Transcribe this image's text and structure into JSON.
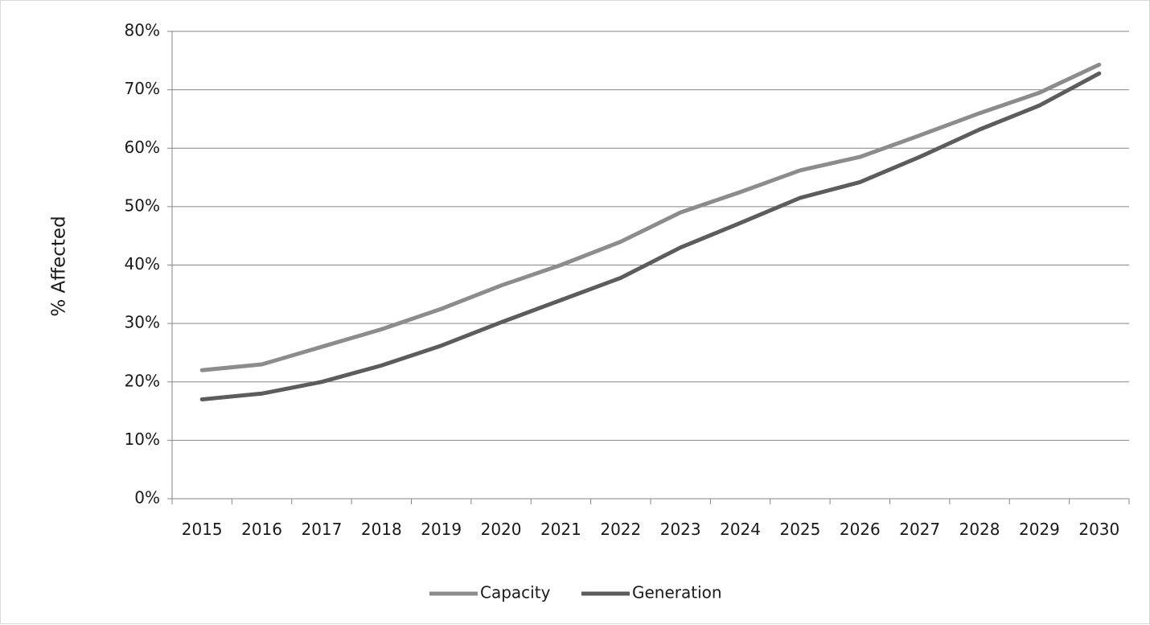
{
  "chart_data": {
    "type": "line",
    "title": "",
    "xlabel": "",
    "ylabel": "% Affected",
    "categories": [
      "2015",
      "2016",
      "2017",
      "2018",
      "2019",
      "2020",
      "2021",
      "2022",
      "2023",
      "2024",
      "2025",
      "2026",
      "2027",
      "2028",
      "2029",
      "2030"
    ],
    "ylim": [
      0,
      0.8
    ],
    "yticks": [
      0,
      0.1,
      0.2,
      0.3,
      0.4,
      0.5,
      0.6,
      0.7,
      0.8
    ],
    "ytick_labels": [
      "0%",
      "10%",
      "20%",
      "30%",
      "40%",
      "50%",
      "60%",
      "70%",
      "80%"
    ],
    "grid": true,
    "legend_position": "bottom",
    "series": [
      {
        "name": "Capacity",
        "color": "#8c8c8c",
        "values": [
          0.22,
          0.23,
          0.26,
          0.29,
          0.325,
          0.365,
          0.4,
          0.44,
          0.49,
          0.525,
          0.562,
          0.585,
          0.622,
          0.66,
          0.695,
          0.743
        ]
      },
      {
        "name": "Generation",
        "color": "#5c5c5c",
        "values": [
          0.17,
          0.18,
          0.2,
          0.228,
          0.262,
          0.302,
          0.34,
          0.378,
          0.43,
          0.472,
          0.515,
          0.542,
          0.585,
          0.632,
          0.673,
          0.728
        ]
      }
    ]
  }
}
